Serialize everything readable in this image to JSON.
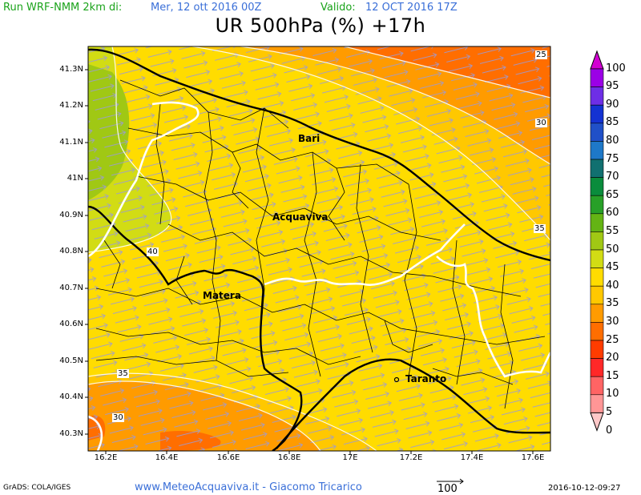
{
  "header": {
    "run_label": "Run WRF-NMM 2km di:",
    "run_date": "Mer, 12 ott 2016 00Z",
    "valid_label": "Valido:",
    "valid_date": "12 OCT 2016 17Z",
    "title": "UR 500hPa (%) +17h"
  },
  "axes": {
    "lat_ticks": [
      "41.3N",
      "41.2N",
      "41.1N",
      "41N",
      "40.9N",
      "40.8N",
      "40.7N",
      "40.6N",
      "40.5N",
      "40.4N",
      "40.3N"
    ],
    "lon_ticks": [
      "16.2E",
      "16.4E",
      "16.6E",
      "16.8E",
      "17E",
      "17.2E",
      "17.4E",
      "17.6E"
    ]
  },
  "cities": [
    {
      "name": "Bari"
    },
    {
      "name": "Acquaviva"
    },
    {
      "name": "Matera"
    },
    {
      "name": "Taranto"
    }
  ],
  "contour_labels": [
    "25",
    "30",
    "35",
    "40",
    "35",
    "30"
  ],
  "colorbar": {
    "levels": [
      "100",
      "95",
      "90",
      "85",
      "80",
      "75",
      "70",
      "65",
      "60",
      "55",
      "50",
      "45",
      "40",
      "35",
      "30",
      "25",
      "20",
      "15",
      "10",
      "5",
      "0"
    ],
    "colors": [
      "#d200d2",
      "#9b00e6",
      "#6e2ee6",
      "#1432d2",
      "#2050c8",
      "#1e78c8",
      "#117070",
      "#0a8c3c",
      "#28a028",
      "#64b414",
      "#a0c814",
      "#d2dc14",
      "#ffdc00",
      "#ffc800",
      "#ff9b00",
      "#ff6e00",
      "#ff3c00",
      "#ff2828",
      "#ff6464",
      "#ff9696",
      "#ffc8c8"
    ]
  },
  "footer": {
    "software": "GrADS: COLA/IGES",
    "credit": "www.MeteoAcquaviva.it - Giacomo Tricarico",
    "vector_ref": "100",
    "timestamp": "2016-10-12-09:27"
  }
}
